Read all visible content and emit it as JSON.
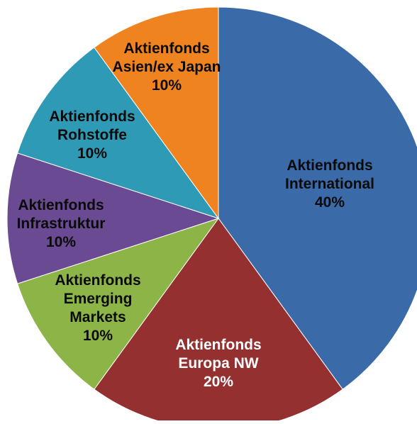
{
  "chart_data": {
    "type": "pie",
    "title": "",
    "legend": "none",
    "slices": [
      {
        "category": "Aktienfonds International",
        "label_lines": [
          "Aktienfonds",
          "International"
        ],
        "value": 40,
        "value_label": "40%",
        "color": "#3a6aa8",
        "label_color": "#0a0a0a"
      },
      {
        "category": "Aktienfonds Europa NW",
        "label_lines": [
          "Aktienfonds",
          "Europa NW"
        ],
        "value": 20,
        "value_label": "20%",
        "color": "#943030",
        "label_color": "#ffffff"
      },
      {
        "category": "Aktienfonds Emerging Markets",
        "label_lines": [
          "Aktienfonds",
          "Emerging",
          "Markets"
        ],
        "value": 10,
        "value_label": "10%",
        "color": "#8db446",
        "label_color": "#0a0a0a"
      },
      {
        "category": "Aktienfonds Infrastruktur",
        "label_lines": [
          "Aktienfonds",
          "Infrastruktur"
        ],
        "value": 10,
        "value_label": "10%",
        "color": "#6a4a92",
        "label_color": "#0a0a0a"
      },
      {
        "category": "Aktienfonds Rohstoffe",
        "label_lines": [
          "Aktienfonds",
          "Rohstoffe"
        ],
        "value": 10,
        "value_label": "10%",
        "color": "#2f9ab5",
        "label_color": "#0a0a0a"
      },
      {
        "category": "Aktienfonds Asien/ex Japan",
        "label_lines": [
          "Aktienfonds",
          "Asien/ex Japan"
        ],
        "value": 10,
        "value_label": "10%",
        "color": "#ee8320",
        "label_color": "#0a0a0a"
      }
    ]
  }
}
